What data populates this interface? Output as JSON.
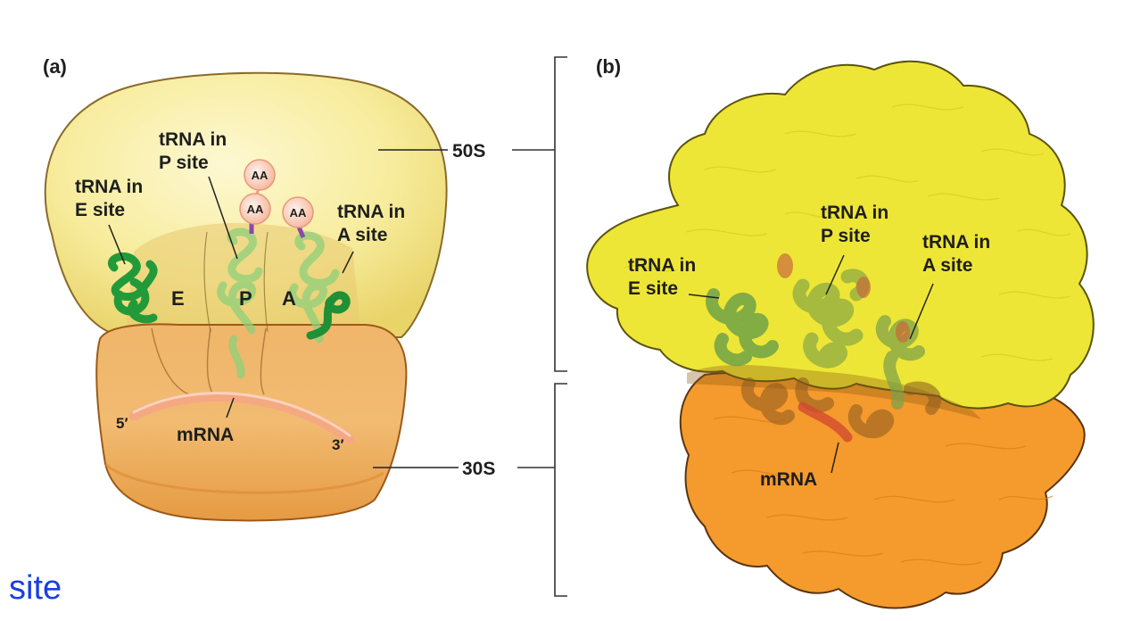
{
  "panel_a": {
    "label": "(a)",
    "large_subunit": "50S",
    "small_subunit": "30S",
    "p_site_trna": [
      "tRNA in",
      "P site"
    ],
    "e_site_trna": [
      "tRNA in",
      "E site"
    ],
    "a_site_trna": [
      "tRNA in",
      "A site"
    ],
    "amino_acid": "AA",
    "site_letters": {
      "e": "E",
      "p": "P",
      "a": "A"
    },
    "mrna": "mRNA",
    "five_prime": "5′",
    "three_prime": "3′"
  },
  "panel_b": {
    "label": "(b)",
    "p_site_trna": [
      "tRNA in",
      "P site"
    ],
    "e_site_trna": [
      "tRNA in",
      "E site"
    ],
    "a_site_trna": [
      "tRNA in",
      "A site"
    ],
    "mrna": "mRNA"
  },
  "corner_text": "site",
  "colors": {
    "large_subunit": "#f5ea8a",
    "small_subunit": "#ecaa57",
    "trna_green": "#2f9e3f",
    "mrna": "#f3a27e",
    "yellow_model": "#eee636",
    "orange_model": "#f59a2c",
    "corner_text": "#1a3ee0"
  }
}
